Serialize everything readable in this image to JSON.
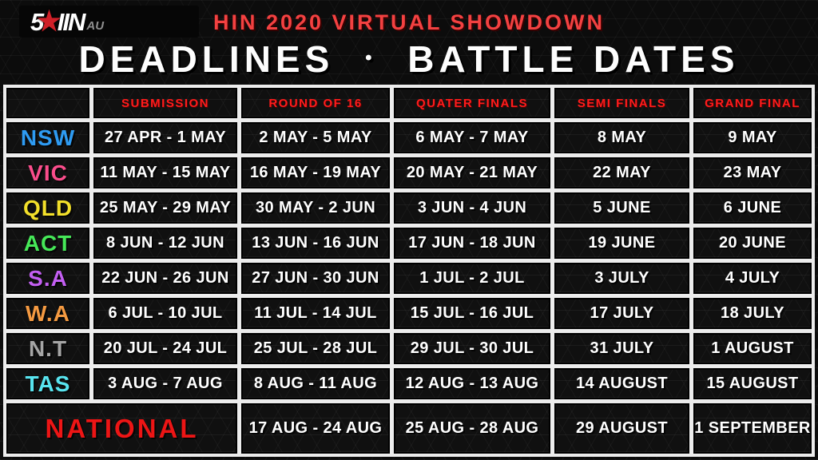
{
  "logo": {
    "prefix": "5",
    "star": "★",
    "suffix": "IIN",
    "region": "AU"
  },
  "header": {
    "title": "HIN 2020 VIRTUAL SHOWDOWN",
    "subtitle_left": "DEADLINES",
    "separator": "•",
    "subtitle_right": "BATTLE DATES"
  },
  "colors": {
    "accent_red": "#ff1c1c",
    "title_red": "#f34141",
    "date_text": "#ffffff",
    "grid_background": "#ececec",
    "cell_background": "#101010"
  },
  "chart_data": {
    "type": "table",
    "title": "HIN 2020 VIRTUAL SHOWDOWN — DEADLINES • BATTLE DATES",
    "columns": [
      "",
      "SUBMISSION",
      "ROUND OF 16",
      "QUATER FINALS",
      "SEMI FINALS",
      "GRAND FINAL"
    ],
    "rows": [
      {
        "label": "NSW",
        "color": "#2e9bf2",
        "cells": [
          "27 APR - 1 MAY",
          "2 MAY - 5 MAY",
          "6 MAY - 7 MAY",
          "8 MAY",
          "9 MAY"
        ]
      },
      {
        "label": "VIC",
        "color": "#fb4d8c",
        "cells": [
          "11 MAY - 15 MAY",
          "16 MAY - 19 MAY",
          "20 MAY - 21 MAY",
          "22 MAY",
          "23 MAY"
        ]
      },
      {
        "label": "QLD",
        "color": "#f2df2a",
        "cells": [
          "25 MAY - 29 MAY",
          "30 MAY - 2 JUN",
          "3 JUN - 4 JUN",
          "5 JUNE",
          "6 JUNE"
        ]
      },
      {
        "label": "ACT",
        "color": "#46e858",
        "cells": [
          "8 JUN - 12 JUN",
          "13 JUN - 16 JUN",
          "17 JUN - 18 JUN",
          "19 JUNE",
          "20 JUNE"
        ]
      },
      {
        "label": "S.A",
        "color": "#c35ff2",
        "cells": [
          "22 JUN - 26 JUN",
          "27 JUN - 30 JUN",
          "1 JUL - 2 JUL",
          "3 JULY",
          "4 JULY"
        ]
      },
      {
        "label": "W.A",
        "color": "#f59a41",
        "cells": [
          "6 JUL - 10 JUL",
          "11 JUL - 14 JUL",
          "15 JUL - 16 JUL",
          "17 JULY",
          "18 JULY"
        ]
      },
      {
        "label": "N.T",
        "color": "#a6a6a6",
        "cells": [
          "20 JUL - 24 JUL",
          "25 JUL - 28 JUL",
          "29 JUL - 30 JUL",
          "31 JULY",
          "1 AUGUST"
        ]
      },
      {
        "label": "TAS",
        "color": "#58e4ef",
        "cells": [
          "3 AUG - 7 AUG",
          "8 AUG - 11 AUG",
          "12 AUG - 13 AUG",
          "14 AUGUST",
          "15 AUGUST"
        ]
      },
      {
        "label": "NATIONAL",
        "color": "#ed1515",
        "span": 2,
        "cells": [
          "17 AUG - 24 AUG",
          "25 AUG - 28 AUG",
          "29 AUGUST",
          "1 SEPTEMBER"
        ]
      }
    ]
  }
}
